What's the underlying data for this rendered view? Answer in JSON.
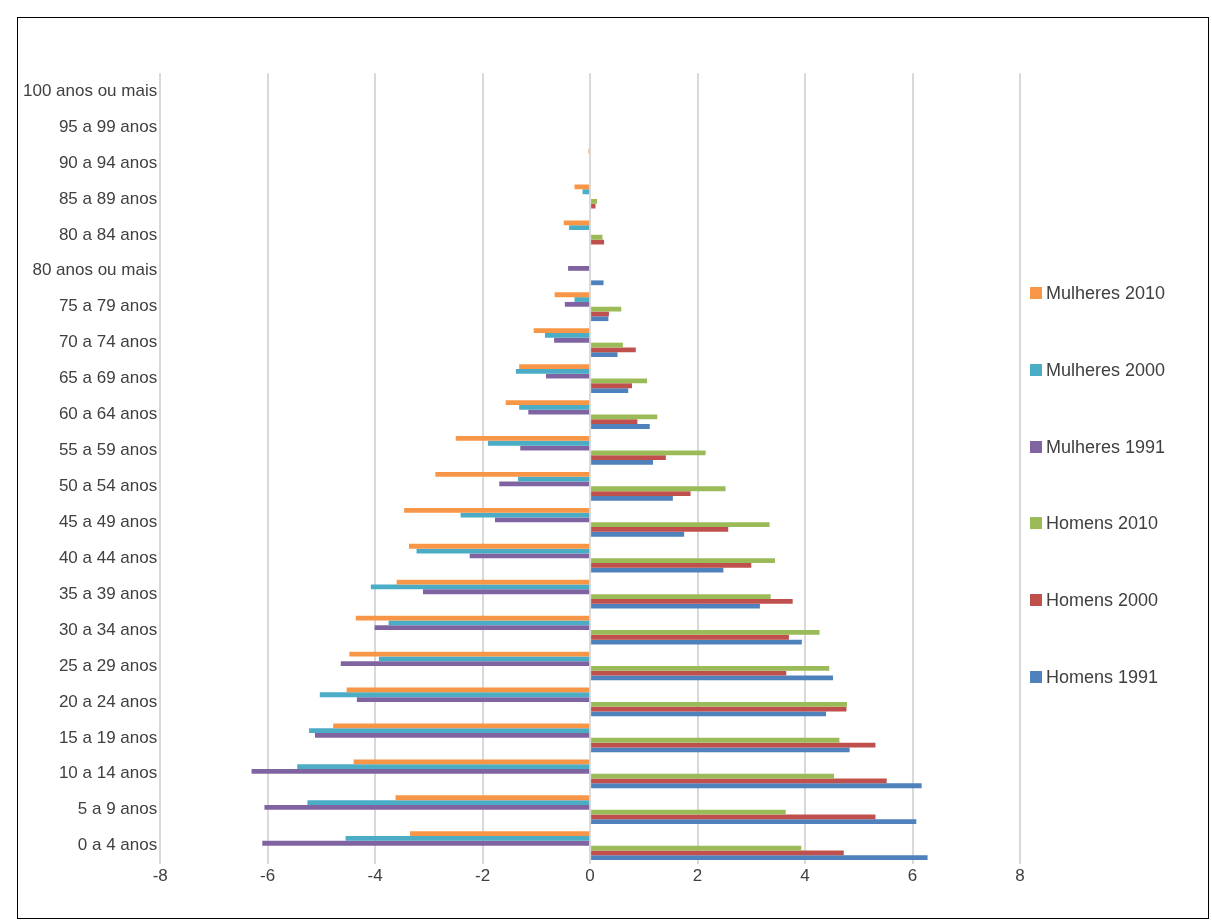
{
  "chart_data": {
    "type": "bar",
    "orientation": "horizontal",
    "categories": [
      "100 anos ou mais",
      "95 a 99 anos",
      "90 a 94 anos",
      "85 a 89 anos",
      "80 a 84 anos",
      "80 anos ou mais",
      "75 a 79 anos",
      "70 a 74 anos",
      "65 a 69 anos",
      "60 a 64 anos",
      "55 a 59 anos",
      "50 a 54 anos",
      "45 a 49 anos",
      "40 a 44 anos",
      "35 a 39 anos",
      "30 a 34 anos",
      "25 a 29 anos",
      "20 a 24 anos",
      "15 a 19 anos",
      "10 a 14 anos",
      "5 a 9 anos",
      "0 a 4 anos"
    ],
    "series": [
      {
        "name": "Mulheres 2010",
        "color": "#f79646",
        "values": [
          null,
          null,
          -0.03,
          -0.29,
          -0.49,
          null,
          -0.66,
          -1.05,
          -1.32,
          -1.57,
          -2.5,
          -2.88,
          -3.46,
          -3.37,
          -3.6,
          -4.36,
          -4.48,
          -4.53,
          -4.78,
          -4.4,
          -3.62,
          -3.35
        ]
      },
      {
        "name": "Mulheres 2000",
        "color": "#4bacc6",
        "values": [
          null,
          null,
          null,
          -0.14,
          -0.39,
          null,
          -0.29,
          -0.84,
          -1.38,
          -1.32,
          -1.9,
          -1.34,
          -2.41,
          -3.23,
          -4.08,
          -3.75,
          -3.93,
          -5.03,
          -5.23,
          -5.45,
          -5.26,
          -4.55
        ]
      },
      {
        "name": "Mulheres 1991",
        "color": "#8064a2",
        "values": [
          null,
          null,
          null,
          null,
          null,
          -0.41,
          -0.47,
          -0.67,
          -0.82,
          -1.15,
          -1.3,
          -1.69,
          -1.77,
          -2.24,
          -3.11,
          -4.01,
          -4.64,
          -4.34,
          -5.12,
          -6.3,
          -6.06,
          -6.1
        ]
      },
      {
        "name": "Homens 2010",
        "color": "#9bbb59",
        "values": [
          null,
          null,
          null,
          0.13,
          0.23,
          null,
          0.58,
          0.61,
          1.06,
          1.25,
          2.15,
          2.52,
          3.34,
          3.44,
          3.36,
          4.27,
          4.45,
          4.78,
          4.64,
          4.54,
          3.64,
          3.93
        ]
      },
      {
        "name": "Homens 2000",
        "color": "#c0504d",
        "values": [
          null,
          null,
          null,
          0.1,
          0.26,
          null,
          0.35,
          0.85,
          0.78,
          0.88,
          1.41,
          1.87,
          2.57,
          3.0,
          3.77,
          3.7,
          3.65,
          4.77,
          5.31,
          5.52,
          5.31,
          4.72
        ]
      },
      {
        "name": "Homens 1991",
        "color": "#4f81bd",
        "values": [
          null,
          null,
          null,
          null,
          null,
          0.25,
          0.34,
          0.51,
          0.71,
          1.11,
          1.17,
          1.54,
          1.75,
          2.48,
          3.16,
          3.94,
          4.52,
          4.39,
          4.83,
          6.17,
          6.07,
          6.28
        ]
      }
    ],
    "xlim": [
      -8,
      8
    ],
    "xticks": [
      -8,
      -6,
      -4,
      -2,
      0,
      2,
      4,
      6,
      8
    ],
    "grid": "x",
    "legend": "right"
  }
}
